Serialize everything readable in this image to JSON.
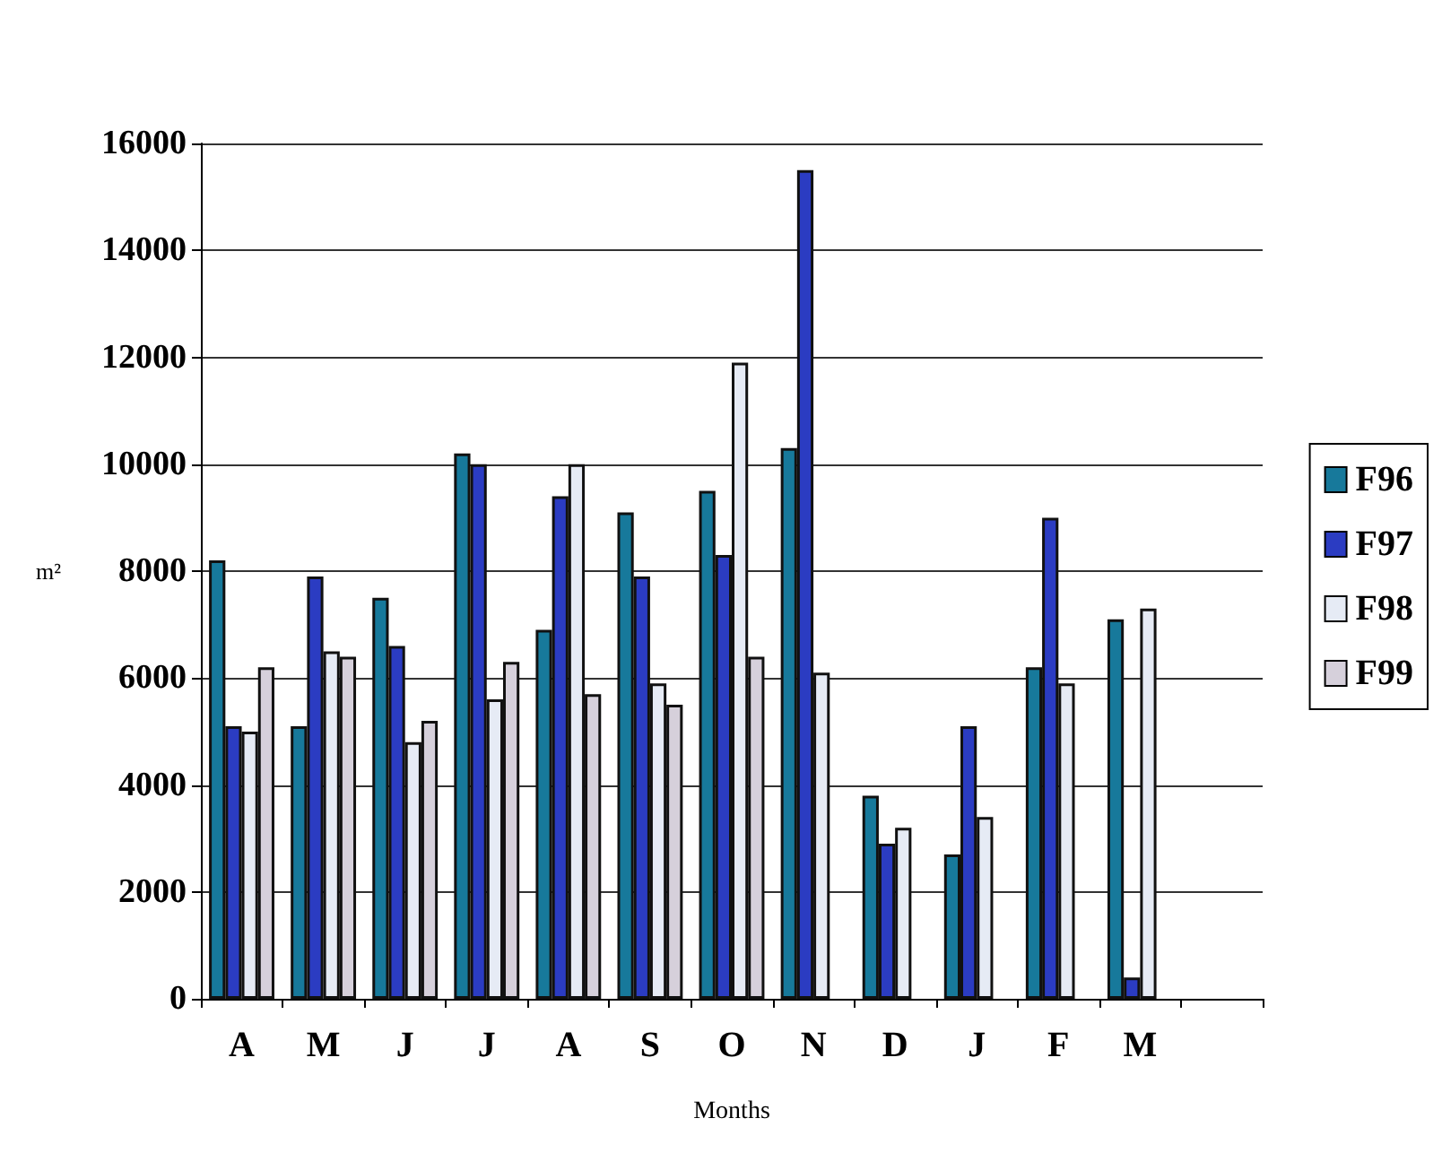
{
  "chart_data": {
    "type": "bar",
    "xlabel": "Months",
    "ylabel": "m²",
    "categories": [
      "A",
      "M",
      "J",
      "J",
      "A",
      "S",
      "O",
      "N",
      "D",
      "J",
      "F",
      "M",
      null
    ],
    "series": [
      {
        "name": "F96",
        "color": "#17799b",
        "values": [
          8200,
          5100,
          7500,
          10200,
          6900,
          9100,
          9500,
          10300,
          3800,
          2700,
          6200,
          7100,
          null
        ]
      },
      {
        "name": "F97",
        "color": "#2b3cc2",
        "values": [
          5100,
          7900,
          6600,
          10000,
          9400,
          7900,
          8300,
          15500,
          2900,
          5100,
          9000,
          400,
          null
        ]
      },
      {
        "name": "F98",
        "color": "#e6ebf5",
        "values": [
          5000,
          6500,
          4800,
          5600,
          10000,
          5900,
          11900,
          6100,
          3200,
          3400,
          5900,
          7300,
          null
        ]
      },
      {
        "name": "F99",
        "color": "#d6d0db",
        "values": [
          6200,
          6400,
          5200,
          6300,
          5700,
          5500,
          6400,
          null,
          null,
          null,
          null,
          null,
          null
        ]
      }
    ],
    "ylim": [
      0,
      16000
    ],
    "yticks": [
      0,
      2000,
      4000,
      6000,
      8000,
      10000,
      12000,
      14000,
      16000
    ],
    "grid": "y",
    "legend": "right"
  }
}
